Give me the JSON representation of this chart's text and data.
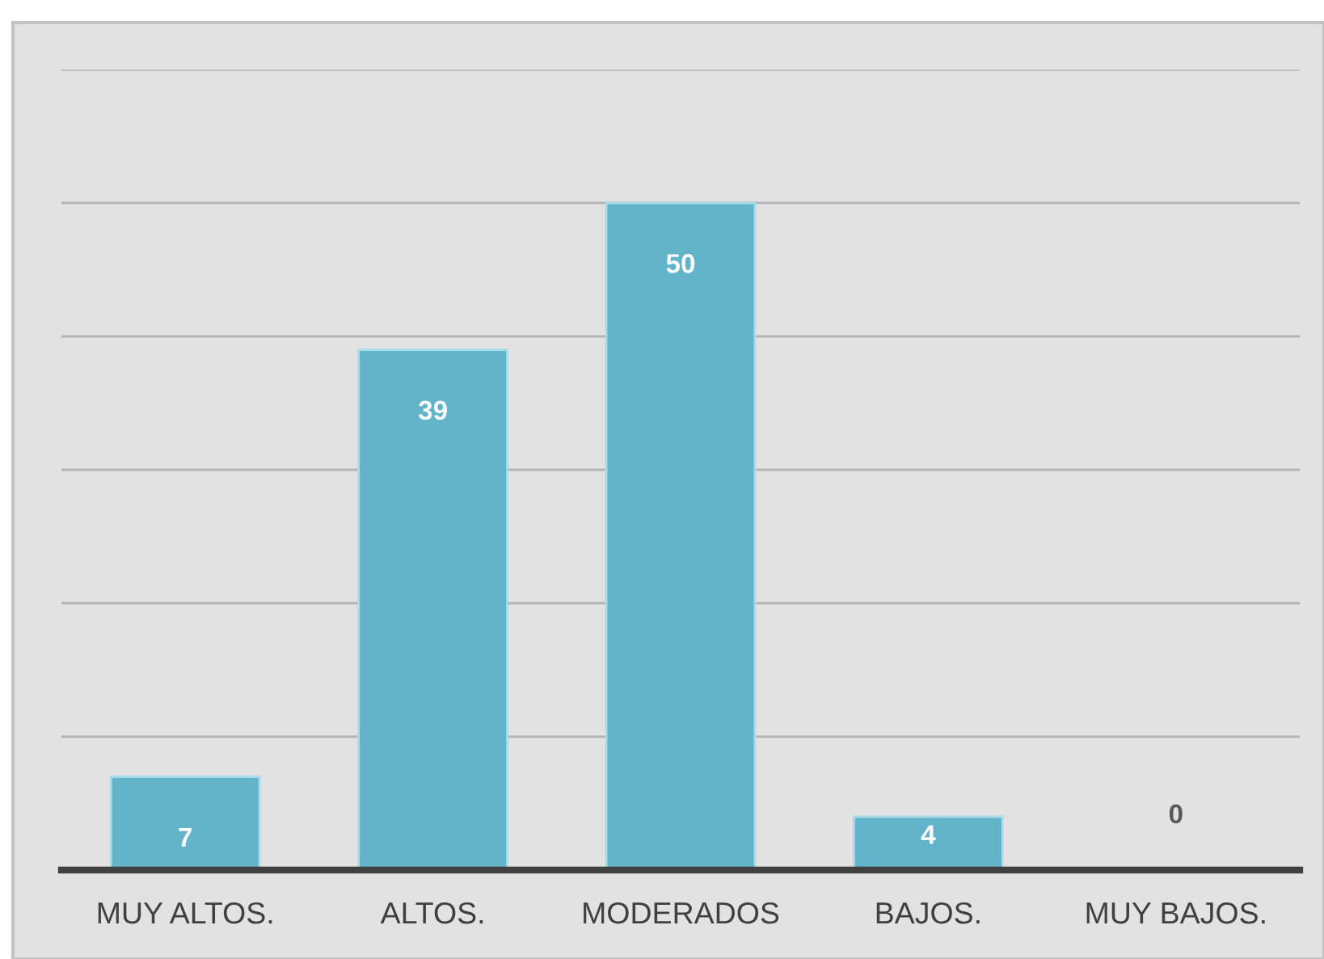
{
  "chart_data": {
    "type": "bar",
    "categories": [
      "MUY ALTOS.",
      "ALTOS.",
      "MODERADOS",
      "BAJOS.",
      "MUY BAJOS."
    ],
    "values": [
      7,
      39,
      50,
      4,
      0
    ],
    "color": "#62b4ca",
    "ylim": [
      0,
      60
    ],
    "yticks": [
      {
        "value": 0,
        "label": null
      },
      {
        "value": 10,
        "label": null
      },
      {
        "value": 20,
        "label": null
      },
      {
        "value": 30,
        "label": null
      },
      {
        "value": 40,
        "label": null
      },
      {
        "value": 50,
        "label": null
      },
      {
        "value": 60,
        "label": null
      }
    ],
    "tick_labels": "x",
    "grid": "y",
    "data_labels": true
  }
}
